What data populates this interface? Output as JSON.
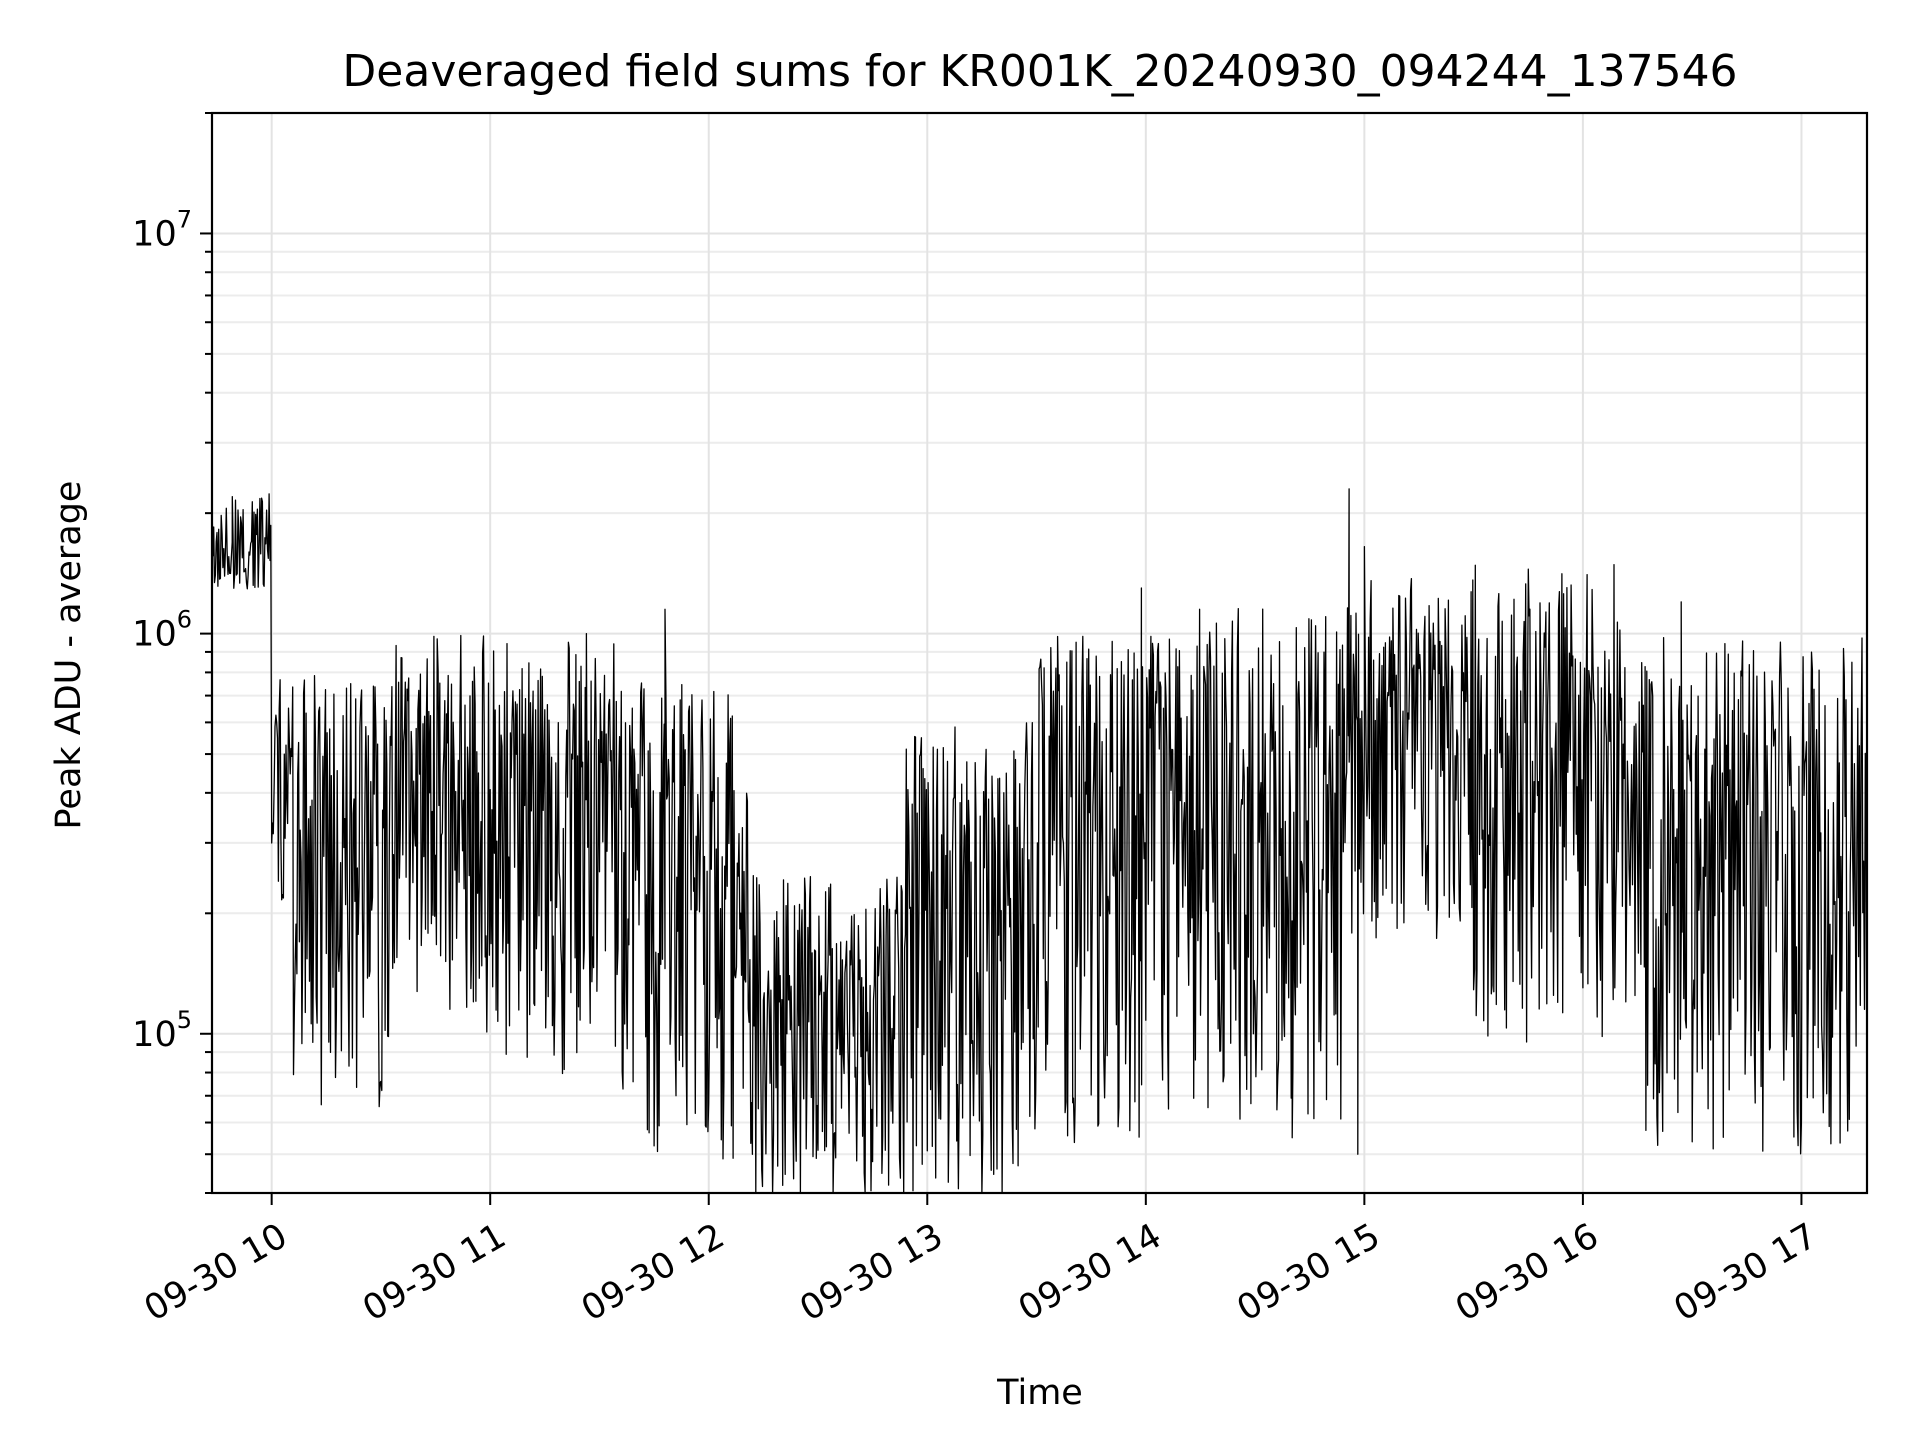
{
  "chart_data": {
    "type": "line",
    "title": "Deaveraged field sums for KR001K_20240930_094244_137546",
    "xlabel": "Time",
    "ylabel": "Peak ADU - average",
    "yscale": "log",
    "ylim": [
      40000,
      20000000
    ],
    "xlim_hours": [
      9.727,
      17.3
    ],
    "grid": true,
    "legend": "none",
    "line_color": "#000000",
    "x_tick_labels": [
      "09-30 10",
      "09-30 11",
      "09-30 12",
      "09-30 13",
      "09-30 14",
      "09-30 15",
      "09-30 16",
      "09-30 17"
    ],
    "x_tick_hours": [
      10,
      11,
      12,
      13,
      14,
      15,
      16,
      17
    ],
    "y_tick_labels": [
      {
        "base": "10",
        "exp": "5",
        "value": 100000
      },
      {
        "base": "10",
        "exp": "6",
        "value": 1000000
      },
      {
        "base": "10",
        "exp": "7",
        "value": 10000000
      }
    ],
    "series_segments": [
      {
        "x": [
          9.727,
          10.0
        ],
        "level": 1700000,
        "spread": 0.12
      },
      {
        "x": [
          10.0,
          10.1
        ],
        "level": 450000,
        "spread": 0.3
      },
      {
        "x": [
          10.1,
          10.55
        ],
        "level": 300000,
        "spread": 0.55
      },
      {
        "x": [
          10.55,
          11.0
        ],
        "level": 400000,
        "spread": 0.5
      },
      {
        "x": [
          11.0,
          11.6
        ],
        "level": 350000,
        "spread": 0.55
      },
      {
        "x": [
          11.6,
          12.2
        ],
        "level": 250000,
        "spread": 0.6
      },
      {
        "x": [
          12.2,
          12.9
        ],
        "level": 120000,
        "spread": 0.4
      },
      {
        "x": [
          12.9,
          13.5
        ],
        "level": 200000,
        "spread": 0.6
      },
      {
        "x": [
          13.5,
          14.2
        ],
        "level": 300000,
        "spread": 0.65
      },
      {
        "x": [
          14.2,
          14.9
        ],
        "level": 350000,
        "spread": 0.65
      },
      {
        "x": [
          14.9,
          15.5
        ],
        "level": 600000,
        "spread": 0.45
      },
      {
        "x": [
          15.5,
          16.2
        ],
        "level": 500000,
        "spread": 0.6
      },
      {
        "x": [
          16.2,
          16.7
        ],
        "level": 300000,
        "spread": 0.65
      },
      {
        "x": [
          16.7,
          17.3
        ],
        "level": 300000,
        "spread": 0.65
      }
    ],
    "series_peaks": [
      {
        "x": 9.82,
        "y": 2200000
      },
      {
        "x": 11.44,
        "y": 1000000
      },
      {
        "x": 11.8,
        "y": 1150000
      },
      {
        "x": 13.98,
        "y": 1300000
      },
      {
        "x": 14.93,
        "y": 2300000
      },
      {
        "x": 15.0,
        "y": 1650000
      },
      {
        "x": 16.45,
        "y": 1200000
      },
      {
        "x": 12.52,
        "y": 57000
      },
      {
        "x": 14.67,
        "y": 55000
      },
      {
        "x": 14.97,
        "y": 50000
      },
      {
        "x": 17.3,
        "y": 52000
      }
    ]
  }
}
